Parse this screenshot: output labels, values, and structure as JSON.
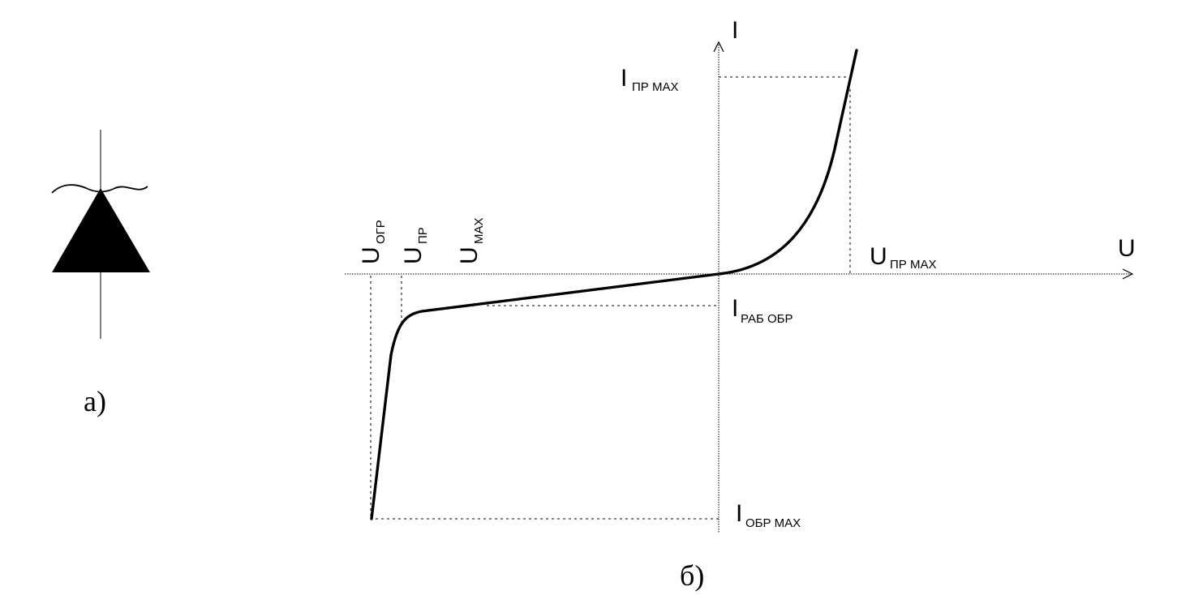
{
  "panel_a": {
    "caption": "а)"
  },
  "panel_b": {
    "caption": "б)",
    "axes": {
      "x_label": "U",
      "y_label": "I"
    },
    "labels": {
      "i_pr_max": {
        "main": "I",
        "sub": "ПР МАХ"
      },
      "u_pr_max": {
        "main": "U",
        "sub": "ПР МАХ"
      },
      "i_rab_obr": {
        "main": "I",
        "sub": "РАБ  ОБР"
      },
      "i_obr_max": {
        "main": "I",
        "sub": "ОБР МАХ"
      },
      "u_ogr": {
        "main": "U",
        "sub": "ОГР"
      },
      "u_pr": {
        "main": "U",
        "sub": "ПР"
      },
      "u_max": {
        "main": "U",
        "sub": "МАХ"
      }
    }
  }
}
